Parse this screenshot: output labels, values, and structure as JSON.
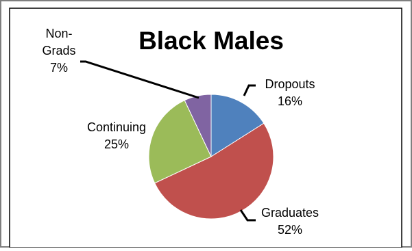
{
  "chart_data": {
    "type": "pie",
    "title": "Black Males",
    "start_angle_deg": 0,
    "direction": "clockwise",
    "slices": [
      {
        "label_lines": [
          "Dropouts"
        ],
        "value_label": "16%",
        "value": 16,
        "color": "#4F81BD"
      },
      {
        "label_lines": [
          "Graduates"
        ],
        "value_label": "52%",
        "value": 52,
        "color": "#C0504D"
      },
      {
        "label_lines": [
          "Continuing"
        ],
        "value_label": "25%",
        "value": 25,
        "color": "#9BBB59"
      },
      {
        "label_lines": [
          "Non-",
          "Grads"
        ],
        "value_label": "7%",
        "value": 7,
        "color": "#8064A2"
      }
    ]
  }
}
